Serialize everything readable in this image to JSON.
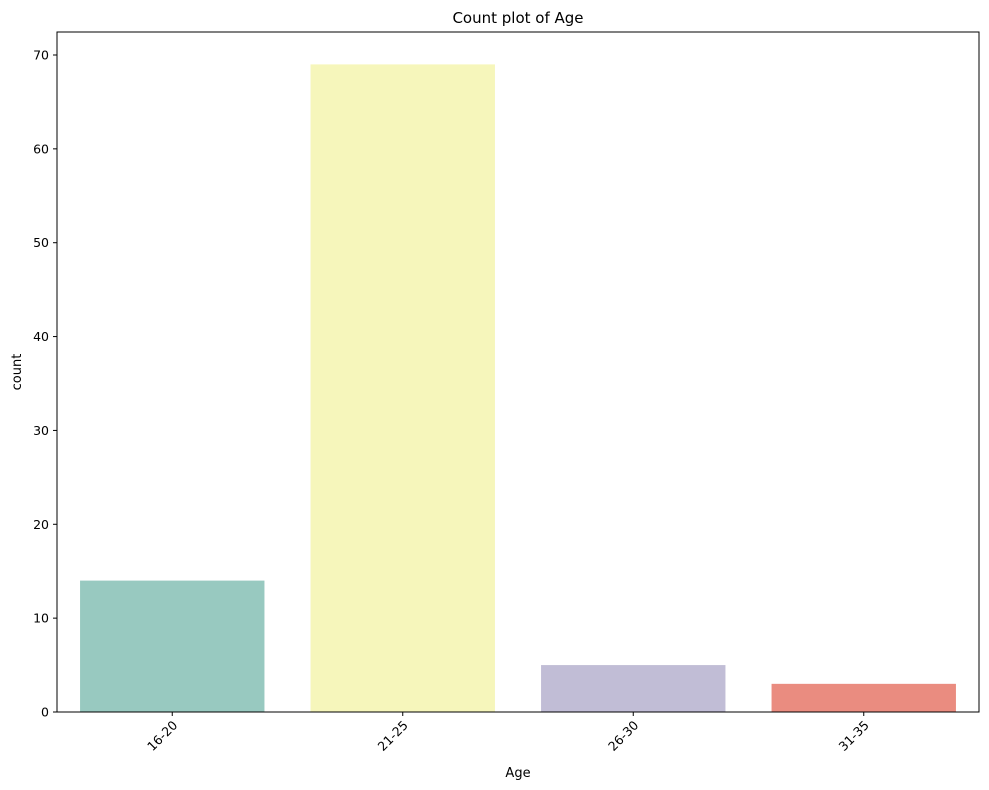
{
  "chart_data": {
    "type": "bar",
    "title": "Count plot of Age",
    "xlabel": "Age",
    "ylabel": "count",
    "categories": [
      "16-20",
      "21-25",
      "26-30",
      "31-35"
    ],
    "values": [
      14,
      69,
      5,
      3
    ],
    "colors": [
      "#98c9c0",
      "#f6f6bb",
      "#c1bdd6",
      "#ea8c80"
    ],
    "yticks": [
      0,
      10,
      20,
      30,
      40,
      50,
      60,
      70
    ],
    "ylim": [
      0,
      72.45
    ],
    "grid": false,
    "xtick_rotation": -45
  }
}
